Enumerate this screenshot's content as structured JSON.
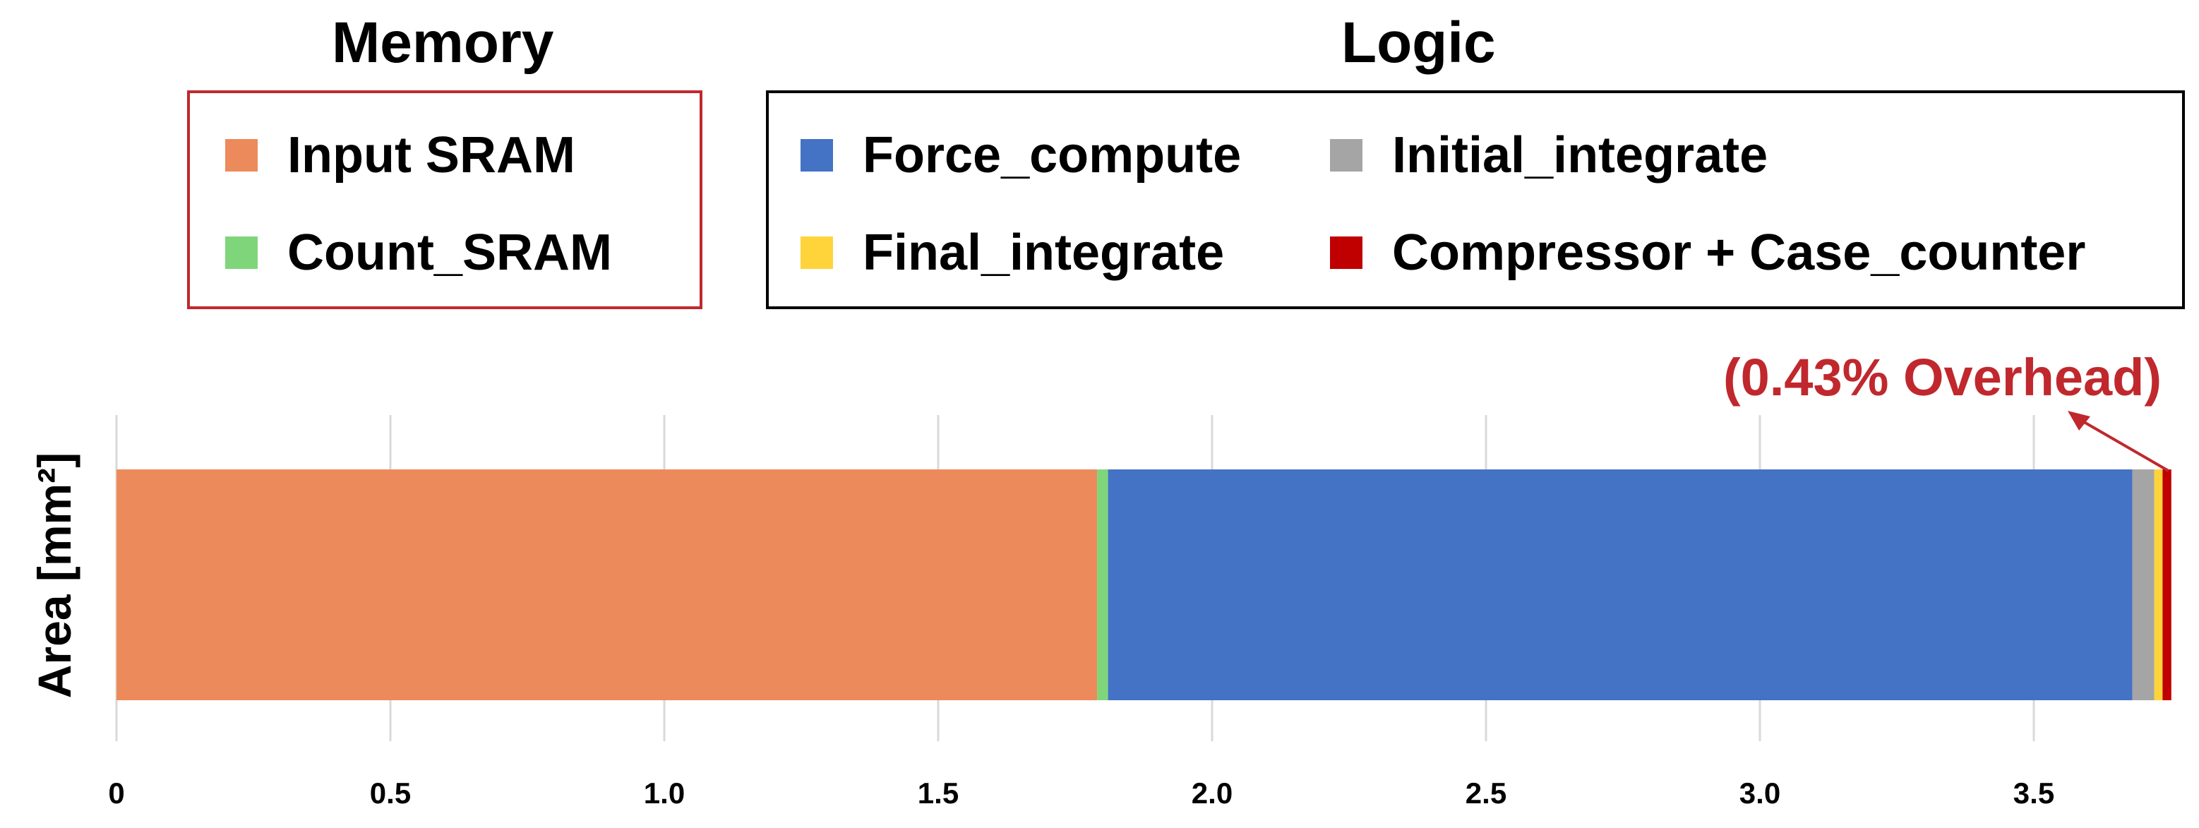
{
  "legend": {
    "memory": {
      "title": "Memory",
      "border_color": "#c0282d",
      "items": [
        {
          "label": "Input SRAM",
          "color": "#ed8a5b"
        },
        {
          "label": "Count_SRAM",
          "color": "#7fd67a"
        }
      ]
    },
    "logic": {
      "title": "Logic",
      "border_color": "#000000",
      "items": [
        {
          "label": "Force_compute",
          "color": "#4472c4"
        },
        {
          "label": "Initial_integrate",
          "color": "#a5a5a5"
        },
        {
          "label": "Final_integrate",
          "color": "#ffd43b"
        },
        {
          "label": "Compressor + Case_counter",
          "color": "#c00000"
        }
      ]
    }
  },
  "chart_data": {
    "type": "bar",
    "orientation": "horizontal",
    "stacked": true,
    "categories": [
      ""
    ],
    "series": [
      {
        "name": "Input SRAM",
        "values": [
          1.79
        ],
        "color": "#ed8a5b"
      },
      {
        "name": "Count_SRAM",
        "values": [
          0.02
        ],
        "color": "#7fd67a"
      },
      {
        "name": "Force_compute",
        "values": [
          1.87
        ],
        "color": "#4472c4"
      },
      {
        "name": "Initial_integrate",
        "values": [
          0.04
        ],
        "color": "#a5a5a5"
      },
      {
        "name": "Final_integrate",
        "values": [
          0.015
        ],
        "color": "#ffd43b"
      },
      {
        "name": "Compressor + Case_counter",
        "values": [
          0.016
        ],
        "color": "#c00000"
      }
    ],
    "xlim": [
      0,
      3.75
    ],
    "xticks": [
      0,
      0.5,
      1.0,
      1.5,
      2.0,
      2.5,
      3.0,
      3.5
    ],
    "xtick_labels": [
      "0",
      "0.5",
      "1.0",
      "1.5",
      "2.0",
      "2.5",
      "3.0",
      "3.5"
    ],
    "xlabel": "",
    "ylabel": "Area [mm²]",
    "grid": true,
    "annotation": {
      "text": "(0.43% Overhead)",
      "color": "#c0282d",
      "target_series": "Compressor + Case_counter"
    }
  }
}
